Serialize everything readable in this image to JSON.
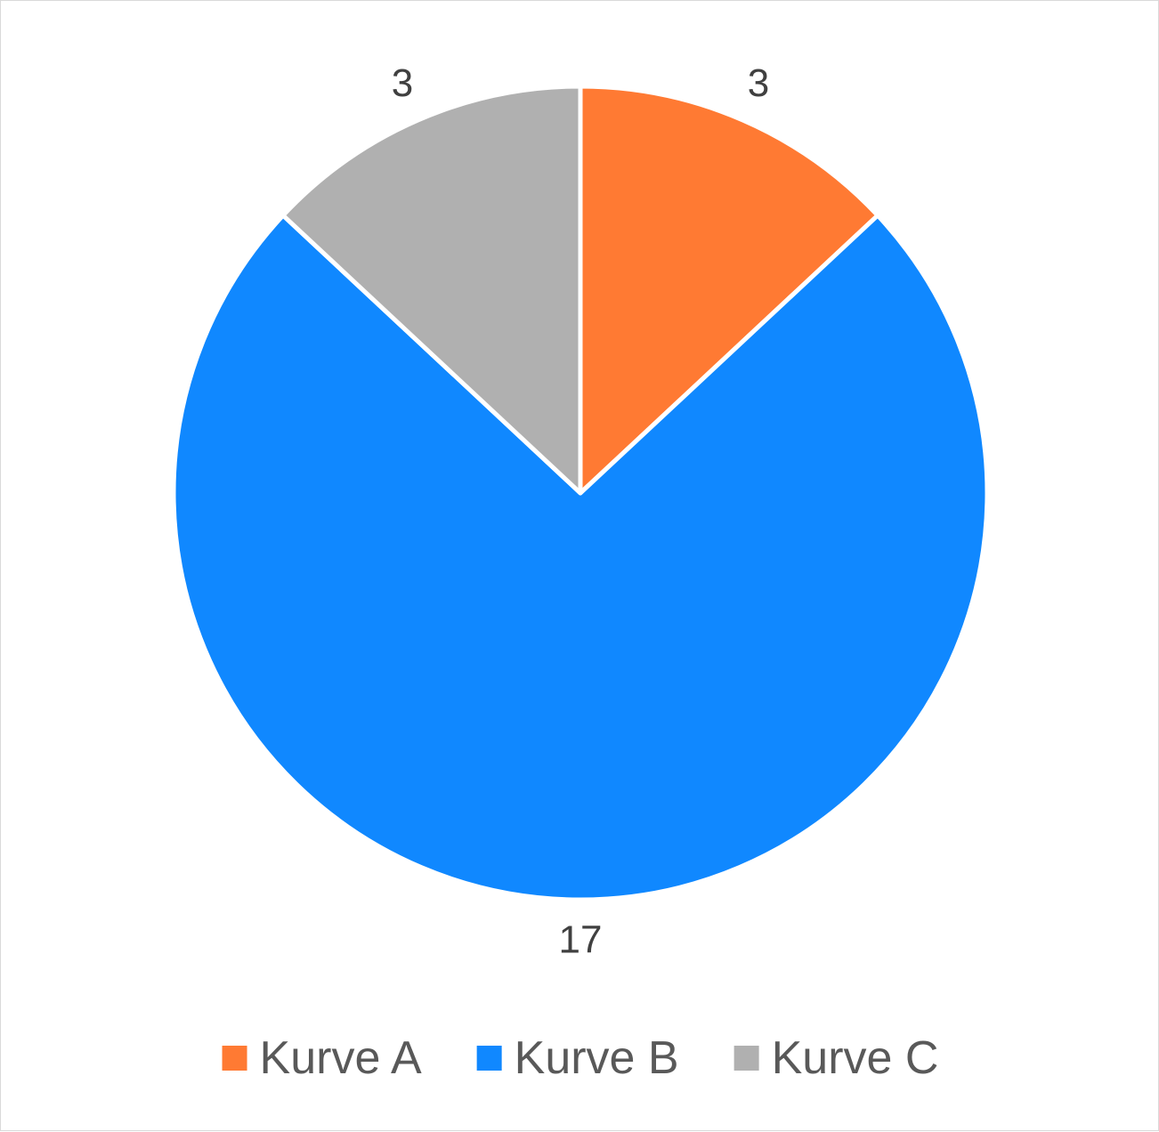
{
  "chart_data": {
    "type": "pie",
    "title": "",
    "categories": [
      "Kurve A",
      "Kurve B",
      "Kurve C"
    ],
    "values": [
      3,
      17,
      3
    ],
    "data_labels": [
      "3",
      "17",
      "3"
    ],
    "colors": [
      "#FF7A33",
      "#1088FF",
      "#B0B0B0"
    ],
    "legend_position": "bottom",
    "start_angle_deg": 0,
    "direction": "clockwise",
    "slice_border_color": "#FFFFFF"
  }
}
